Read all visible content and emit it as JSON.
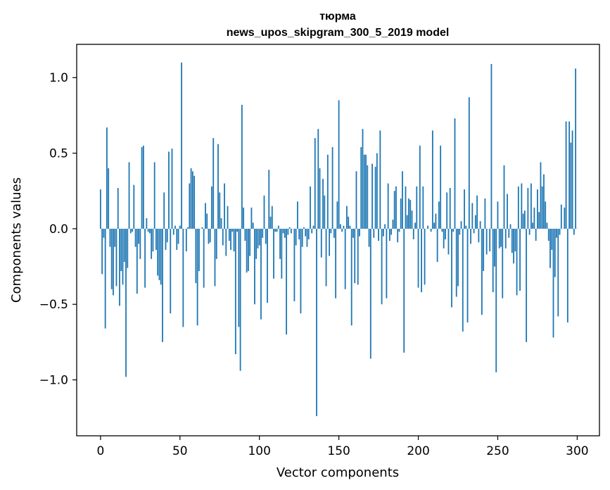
{
  "chart_data": {
    "type": "bar",
    "title_line1": "тюрма",
    "title_line2": "news_upos_skipgram_300_5_2019 model",
    "xlabel": "Vector components",
    "ylabel": "Components values",
    "xlim": [
      -15,
      314
    ],
    "ylim": [
      -1.37,
      1.22
    ],
    "xticks": [
      0,
      50,
      100,
      150,
      200,
      250,
      300
    ],
    "xtick_labels": [
      "0",
      "50",
      "100",
      "150",
      "200",
      "250",
      "300"
    ],
    "yticks": [
      -1.0,
      -0.5,
      0.0,
      0.5,
      1.0
    ],
    "ytick_labels": [
      "−1.0",
      "−0.5",
      "0.0",
      "0.5",
      "1.0"
    ],
    "bar_color": "#1f77b4",
    "values": [
      0.26,
      -0.3,
      -0.06,
      -0.66,
      0.67,
      0.4,
      -0.12,
      -0.4,
      -0.44,
      -0.12,
      -0.38,
      0.27,
      -0.51,
      -0.28,
      -0.37,
      -0.22,
      -0.98,
      -0.26,
      0.44,
      -0.03,
      -0.02,
      0.29,
      -0.12,
      -0.43,
      -0.1,
      -0.2,
      0.54,
      0.55,
      -0.39,
      0.07,
      -0.02,
      -0.03,
      -0.2,
      -0.15,
      0.44,
      -0.14,
      -0.31,
      -0.34,
      -0.37,
      -0.75,
      0.24,
      -0.14,
      -0.09,
      0.51,
      -0.56,
      0.53,
      -0.04,
      0.02,
      -0.14,
      -0.1,
      0.02,
      1.1,
      -0.65,
      0.0,
      -0.15,
      0.01,
      0.3,
      0.4,
      0.38,
      0.35,
      -0.36,
      -0.64,
      -0.28,
      0.0,
      0.01,
      -0.39,
      0.17,
      0.1,
      -0.1,
      -0.09,
      0.28,
      0.6,
      -0.38,
      -0.2,
      0.56,
      0.24,
      0.07,
      -0.11,
      0.3,
      -0.18,
      0.15,
      -0.08,
      -0.14,
      -0.02,
      -0.15,
      -0.83,
      -0.02,
      -0.65,
      -0.94,
      0.82,
      0.14,
      -0.08,
      -0.29,
      -0.28,
      -0.18,
      0.14,
      0.04,
      -0.5,
      -0.2,
      -0.13,
      -0.11,
      -0.6,
      -0.06,
      0.22,
      -0.1,
      -0.49,
      0.39,
      0.08,
      0.15,
      -0.33,
      -0.02,
      -0.02,
      0.02,
      -0.2,
      -0.33,
      -0.03,
      -0.06,
      -0.7,
      -0.04,
      0.01,
      -0.03,
      0.0,
      -0.48,
      -0.11,
      0.18,
      -0.07,
      -0.56,
      -0.12,
      0.01,
      -0.05,
      -0.12,
      -0.07,
      0.28,
      -0.03,
      0.02,
      0.6,
      -1.24,
      0.66,
      0.4,
      -0.19,
      0.33,
      0.22,
      -0.38,
      0.49,
      -0.18,
      -0.03,
      0.54,
      -0.06,
      -0.46,
      0.18,
      0.85,
      0.03,
      -0.02,
      0.02,
      -0.4,
      0.15,
      0.08,
      0.02,
      -0.64,
      -0.06,
      -0.36,
      0.38,
      -0.37,
      -0.05,
      0.54,
      0.66,
      0.49,
      0.49,
      0.42,
      -0.12,
      -0.86,
      0.43,
      -0.06,
      0.41,
      0.5,
      -0.08,
      0.65,
      -0.5,
      -0.05,
      0.03,
      -0.46,
      0.3,
      -0.08,
      -0.04,
      0.06,
      0.25,
      0.28,
      -0.09,
      -0.02,
      0.2,
      0.38,
      -0.82,
      0.28,
      0.09,
      0.2,
      0.19,
      0.12,
      -0.07,
      0.04,
      0.28,
      -0.39,
      0.55,
      -0.42,
      0.28,
      -0.37,
      0.0,
      0.02,
      0.0,
      -0.02,
      0.65,
      0.04,
      0.1,
      -0.22,
      0.18,
      0.55,
      -0.02,
      -0.13,
      -0.07,
      0.24,
      -0.17,
      0.27,
      -0.52,
      -0.02,
      0.73,
      -0.45,
      -0.38,
      -0.04,
      0.05,
      -0.68,
      0.26,
      0.02,
      -0.62,
      0.87,
      -0.1,
      0.17,
      -0.03,
      0.09,
      0.22,
      -0.09,
      0.05,
      -0.57,
      -0.28,
      0.2,
      -0.17,
      0.0,
      -0.15,
      1.09,
      -0.42,
      -0.25,
      -0.95,
      0.18,
      -0.13,
      -0.12,
      -0.46,
      0.42,
      -0.13,
      0.23,
      -0.06,
      0.03,
      -0.16,
      -0.23,
      -0.15,
      -0.44,
      0.28,
      -0.41,
      0.3,
      0.1,
      0.12,
      -0.75,
      0.27,
      -0.04,
      0.3,
      0.04,
      0.14,
      -0.08,
      0.26,
      0.11,
      0.44,
      0.28,
      0.36,
      0.18,
      0.04,
      -0.08,
      -0.26,
      -0.14,
      -0.72,
      -0.32,
      -0.06,
      -0.58,
      -0.04,
      0.16,
      0.0,
      0.14,
      0.71,
      -0.62,
      0.71,
      0.57,
      0.65,
      -0.04,
      1.06,
      0.0
    ]
  }
}
